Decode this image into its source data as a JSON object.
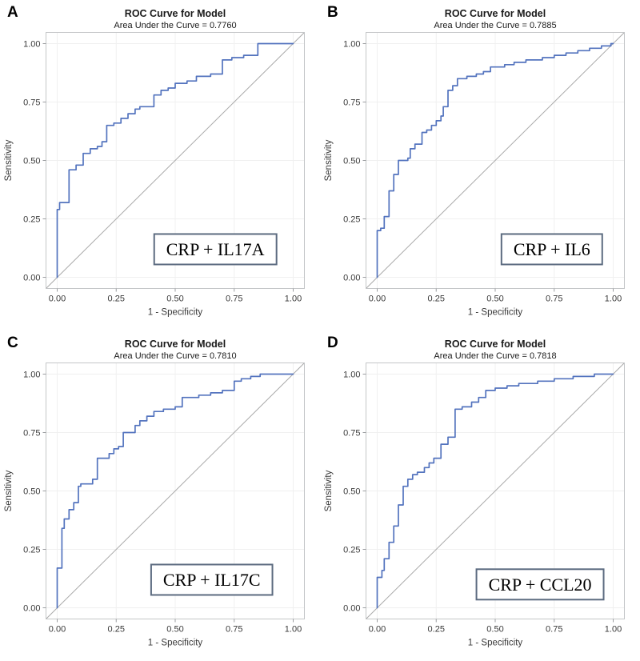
{
  "figure": {
    "axis": {
      "x_label": "1 - Specificity",
      "y_label": "Sensitivity",
      "tick_values": [
        0,
        0.25,
        0.5,
        0.75,
        1
      ],
      "x_tick_labels": [
        "0.00",
        "0.25",
        "0.50",
        "0.75",
        "1.00"
      ],
      "y_tick_labels": [
        "0.00",
        "0.25",
        "0.50",
        "0.75",
        "1.00"
      ],
      "x_range": [
        0,
        1
      ],
      "y_range": [
        0,
        1
      ],
      "grid": true
    },
    "colors": {
      "roc_line": "#5373BE",
      "diagonal_line": "#A9A9A9",
      "gridline": "#F0F0F0",
      "plot_frame": "#C4C6C8",
      "tick_mark": "#9B9DA0",
      "tick_text": "#3A3A3A",
      "title_text": "#1A1A1A",
      "label_box_border": "#5C6B80",
      "label_box_text": "#000000"
    }
  },
  "chart_data": [
    {
      "panel_letter": "A",
      "type": "line",
      "title": "ROC Curve for Model",
      "subtitle": "Area Under the Curve = 0.7760",
      "auc": 0.776,
      "model_label": "CRP + IL17A",
      "xlabel": "1 - Specificity",
      "ylabel": "Sensitivity",
      "xlim": [
        0,
        1
      ],
      "ylim": [
        0,
        1
      ],
      "diagonal_reference": true,
      "label_box_center": {
        "x": 0.67,
        "y": 0.12
      },
      "roc_points": [
        [
          0,
          0
        ],
        [
          0,
          0.29
        ],
        [
          0.01,
          0.29
        ],
        [
          0.01,
          0.32
        ],
        [
          0.05,
          0.32
        ],
        [
          0.05,
          0.46
        ],
        [
          0.08,
          0.46
        ],
        [
          0.08,
          0.48
        ],
        [
          0.11,
          0.48
        ],
        [
          0.11,
          0.53
        ],
        [
          0.14,
          0.53
        ],
        [
          0.14,
          0.55
        ],
        [
          0.17,
          0.55
        ],
        [
          0.17,
          0.56
        ],
        [
          0.19,
          0.56
        ],
        [
          0.19,
          0.58
        ],
        [
          0.21,
          0.58
        ],
        [
          0.21,
          0.65
        ],
        [
          0.24,
          0.65
        ],
        [
          0.24,
          0.66
        ],
        [
          0.27,
          0.66
        ],
        [
          0.27,
          0.68
        ],
        [
          0.3,
          0.68
        ],
        [
          0.3,
          0.7
        ],
        [
          0.33,
          0.7
        ],
        [
          0.33,
          0.72
        ],
        [
          0.35,
          0.72
        ],
        [
          0.35,
          0.73
        ],
        [
          0.41,
          0.73
        ],
        [
          0.41,
          0.78
        ],
        [
          0.44,
          0.78
        ],
        [
          0.44,
          0.8
        ],
        [
          0.47,
          0.8
        ],
        [
          0.47,
          0.81
        ],
        [
          0.5,
          0.81
        ],
        [
          0.5,
          0.83
        ],
        [
          0.55,
          0.83
        ],
        [
          0.55,
          0.84
        ],
        [
          0.59,
          0.84
        ],
        [
          0.59,
          0.86
        ],
        [
          0.65,
          0.86
        ],
        [
          0.65,
          0.87
        ],
        [
          0.7,
          0.87
        ],
        [
          0.7,
          0.93
        ],
        [
          0.74,
          0.93
        ],
        [
          0.74,
          0.94
        ],
        [
          0.79,
          0.94
        ],
        [
          0.79,
          0.95
        ],
        [
          0.85,
          0.95
        ],
        [
          0.85,
          1
        ],
        [
          1,
          1
        ]
      ]
    },
    {
      "panel_letter": "B",
      "type": "line",
      "title": "ROC Curve for Model",
      "subtitle": "Area Under the Curve = 0.7885",
      "auc": 0.7885,
      "model_label": "CRP + IL6",
      "xlabel": "1 - Specificity",
      "ylabel": "Sensitivity",
      "xlim": [
        0,
        1
      ],
      "ylim": [
        0,
        1
      ],
      "diagonal_reference": true,
      "label_box_center": {
        "x": 0.74,
        "y": 0.12
      },
      "roc_points": [
        [
          0,
          0
        ],
        [
          0,
          0.2
        ],
        [
          0.015,
          0.2
        ],
        [
          0.015,
          0.21
        ],
        [
          0.03,
          0.21
        ],
        [
          0.03,
          0.26
        ],
        [
          0.05,
          0.26
        ],
        [
          0.05,
          0.37
        ],
        [
          0.07,
          0.37
        ],
        [
          0.07,
          0.44
        ],
        [
          0.09,
          0.44
        ],
        [
          0.09,
          0.5
        ],
        [
          0.13,
          0.5
        ],
        [
          0.13,
          0.51
        ],
        [
          0.14,
          0.51
        ],
        [
          0.14,
          0.55
        ],
        [
          0.16,
          0.55
        ],
        [
          0.16,
          0.57
        ],
        [
          0.19,
          0.57
        ],
        [
          0.19,
          0.62
        ],
        [
          0.21,
          0.62
        ],
        [
          0.21,
          0.63
        ],
        [
          0.23,
          0.63
        ],
        [
          0.23,
          0.65
        ],
        [
          0.25,
          0.65
        ],
        [
          0.25,
          0.67
        ],
        [
          0.27,
          0.67
        ],
        [
          0.27,
          0.69
        ],
        [
          0.28,
          0.69
        ],
        [
          0.28,
          0.73
        ],
        [
          0.3,
          0.73
        ],
        [
          0.3,
          0.8
        ],
        [
          0.32,
          0.8
        ],
        [
          0.32,
          0.82
        ],
        [
          0.34,
          0.82
        ],
        [
          0.34,
          0.85
        ],
        [
          0.38,
          0.85
        ],
        [
          0.38,
          0.86
        ],
        [
          0.42,
          0.86
        ],
        [
          0.42,
          0.87
        ],
        [
          0.45,
          0.87
        ],
        [
          0.45,
          0.88
        ],
        [
          0.48,
          0.88
        ],
        [
          0.48,
          0.9
        ],
        [
          0.54,
          0.9
        ],
        [
          0.54,
          0.91
        ],
        [
          0.58,
          0.91
        ],
        [
          0.58,
          0.92
        ],
        [
          0.63,
          0.92
        ],
        [
          0.63,
          0.93
        ],
        [
          0.7,
          0.93
        ],
        [
          0.7,
          0.94
        ],
        [
          0.75,
          0.94
        ],
        [
          0.75,
          0.95
        ],
        [
          0.8,
          0.95
        ],
        [
          0.8,
          0.96
        ],
        [
          0.85,
          0.96
        ],
        [
          0.85,
          0.97
        ],
        [
          0.9,
          0.97
        ],
        [
          0.9,
          0.98
        ],
        [
          0.95,
          0.98
        ],
        [
          0.95,
          0.99
        ],
        [
          0.99,
          0.99
        ],
        [
          0.99,
          1
        ],
        [
          1,
          1
        ]
      ]
    },
    {
      "panel_letter": "C",
      "type": "line",
      "title": "ROC Curve for Model",
      "subtitle": "Area Under the Curve = 0.7810",
      "auc": 0.781,
      "model_label": "CRP + IL17C",
      "xlabel": "1 - Specificity",
      "ylabel": "Sensitivity",
      "xlim": [
        0,
        1
      ],
      "ylim": [
        0,
        1
      ],
      "diagonal_reference": true,
      "label_box_center": {
        "x": 0.655,
        "y": 0.12
      },
      "roc_points": [
        [
          0,
          0
        ],
        [
          0,
          0.17
        ],
        [
          0.02,
          0.17
        ],
        [
          0.02,
          0.34
        ],
        [
          0.03,
          0.34
        ],
        [
          0.03,
          0.38
        ],
        [
          0.05,
          0.38
        ],
        [
          0.05,
          0.42
        ],
        [
          0.07,
          0.42
        ],
        [
          0.07,
          0.45
        ],
        [
          0.09,
          0.45
        ],
        [
          0.09,
          0.52
        ],
        [
          0.1,
          0.52
        ],
        [
          0.1,
          0.53
        ],
        [
          0.15,
          0.53
        ],
        [
          0.15,
          0.55
        ],
        [
          0.17,
          0.55
        ],
        [
          0.17,
          0.64
        ],
        [
          0.22,
          0.64
        ],
        [
          0.22,
          0.66
        ],
        [
          0.24,
          0.66
        ],
        [
          0.24,
          0.68
        ],
        [
          0.26,
          0.68
        ],
        [
          0.26,
          0.69
        ],
        [
          0.28,
          0.69
        ],
        [
          0.28,
          0.75
        ],
        [
          0.33,
          0.75
        ],
        [
          0.33,
          0.78
        ],
        [
          0.35,
          0.78
        ],
        [
          0.35,
          0.8
        ],
        [
          0.38,
          0.8
        ],
        [
          0.38,
          0.82
        ],
        [
          0.41,
          0.82
        ],
        [
          0.41,
          0.84
        ],
        [
          0.45,
          0.84
        ],
        [
          0.45,
          0.85
        ],
        [
          0.5,
          0.85
        ],
        [
          0.5,
          0.86
        ],
        [
          0.53,
          0.86
        ],
        [
          0.53,
          0.9
        ],
        [
          0.6,
          0.9
        ],
        [
          0.6,
          0.91
        ],
        [
          0.65,
          0.91
        ],
        [
          0.65,
          0.92
        ],
        [
          0.7,
          0.92
        ],
        [
          0.7,
          0.93
        ],
        [
          0.75,
          0.93
        ],
        [
          0.75,
          0.97
        ],
        [
          0.78,
          0.97
        ],
        [
          0.78,
          0.98
        ],
        [
          0.82,
          0.98
        ],
        [
          0.82,
          0.99
        ],
        [
          0.86,
          0.99
        ],
        [
          0.86,
          1
        ],
        [
          1,
          1
        ]
      ]
    },
    {
      "panel_letter": "D",
      "type": "line",
      "title": "ROC Curve for Model",
      "subtitle": "Area Under the Curve = 0.7818",
      "auc": 0.7818,
      "model_label": "CRP + CCL20",
      "xlabel": "1 - Specificity",
      "ylabel": "Sensitivity",
      "xlim": [
        0,
        1
      ],
      "ylim": [
        0,
        1
      ],
      "diagonal_reference": true,
      "label_box_center": {
        "x": 0.69,
        "y": 0.1
      },
      "roc_points": [
        [
          0,
          0
        ],
        [
          0,
          0.13
        ],
        [
          0.02,
          0.13
        ],
        [
          0.02,
          0.16
        ],
        [
          0.03,
          0.16
        ],
        [
          0.03,
          0.21
        ],
        [
          0.05,
          0.21
        ],
        [
          0.05,
          0.28
        ],
        [
          0.07,
          0.28
        ],
        [
          0.07,
          0.35
        ],
        [
          0.09,
          0.35
        ],
        [
          0.09,
          0.44
        ],
        [
          0.11,
          0.44
        ],
        [
          0.11,
          0.52
        ],
        [
          0.13,
          0.52
        ],
        [
          0.13,
          0.55
        ],
        [
          0.15,
          0.55
        ],
        [
          0.15,
          0.57
        ],
        [
          0.17,
          0.57
        ],
        [
          0.17,
          0.58
        ],
        [
          0.2,
          0.58
        ],
        [
          0.2,
          0.6
        ],
        [
          0.22,
          0.6
        ],
        [
          0.22,
          0.62
        ],
        [
          0.24,
          0.62
        ],
        [
          0.24,
          0.64
        ],
        [
          0.27,
          0.64
        ],
        [
          0.27,
          0.7
        ],
        [
          0.3,
          0.7
        ],
        [
          0.3,
          0.73
        ],
        [
          0.33,
          0.73
        ],
        [
          0.33,
          0.85
        ],
        [
          0.36,
          0.85
        ],
        [
          0.36,
          0.86
        ],
        [
          0.4,
          0.86
        ],
        [
          0.4,
          0.88
        ],
        [
          0.43,
          0.88
        ],
        [
          0.43,
          0.9
        ],
        [
          0.46,
          0.9
        ],
        [
          0.46,
          0.93
        ],
        [
          0.5,
          0.93
        ],
        [
          0.5,
          0.94
        ],
        [
          0.55,
          0.94
        ],
        [
          0.55,
          0.95
        ],
        [
          0.6,
          0.95
        ],
        [
          0.6,
          0.96
        ],
        [
          0.68,
          0.96
        ],
        [
          0.68,
          0.97
        ],
        [
          0.75,
          0.97
        ],
        [
          0.75,
          0.98
        ],
        [
          0.83,
          0.98
        ],
        [
          0.83,
          0.99
        ],
        [
          0.92,
          0.99
        ],
        [
          0.92,
          1
        ],
        [
          1,
          1
        ]
      ]
    }
  ]
}
